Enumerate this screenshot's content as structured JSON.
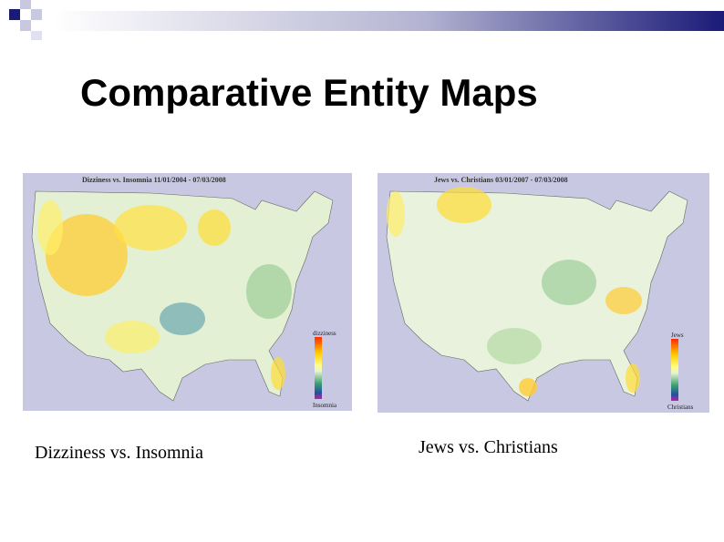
{
  "slide": {
    "title": "Comparative Entity Maps",
    "maps": [
      {
        "title": "Dizziness vs. Insomnia 11/01/2004 - 07/03/2008",
        "legend_top": "dizziness",
        "legend_bottom": "Insomnia",
        "caption": "Dizziness vs. Insomnia"
      },
      {
        "title": "Jews vs. Christians 03/01/2007 - 07/03/2008",
        "legend_top": "Jews",
        "legend_bottom": "Christians",
        "caption": "Jews vs. Christians"
      }
    ]
  }
}
